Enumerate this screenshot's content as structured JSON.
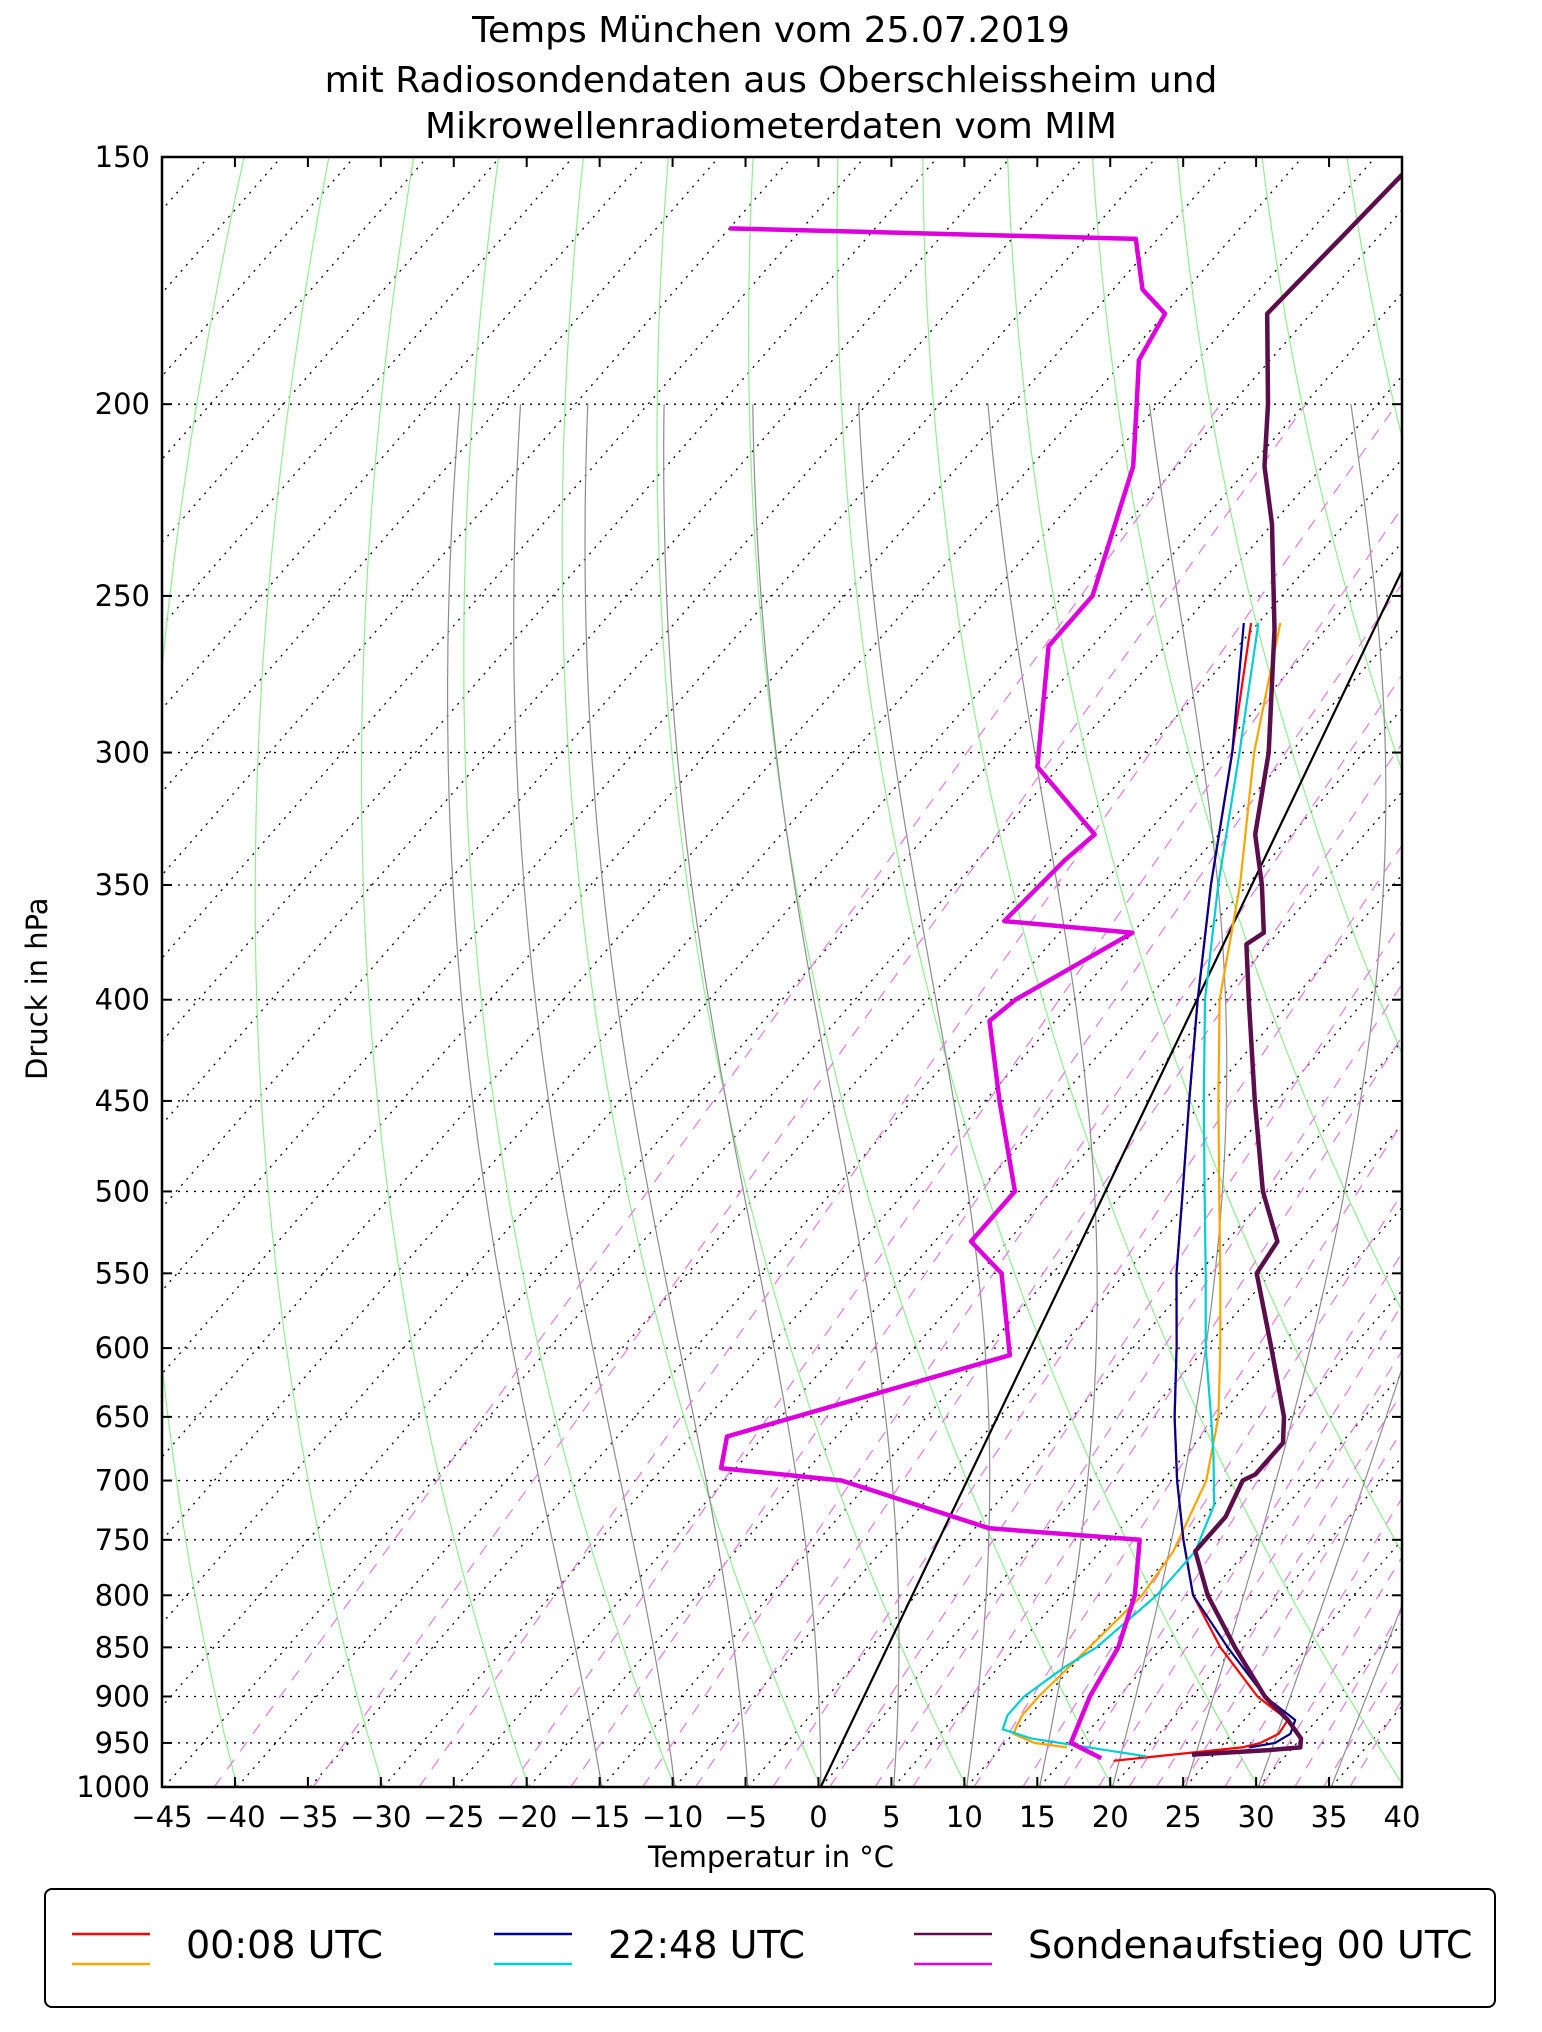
{
  "chart_data": {
    "type": "line",
    "diagram": "skew-T log-p",
    "title": [
      "Temps München vom 25.07.2019",
      "mit Radiosondendaten aus Oberschleissheim und",
      "Mikrowellenradiometerdaten vom MIM"
    ],
    "xlabel": "Temperatur in °C",
    "ylabel": "Druck in hPa",
    "xlim": [
      -45,
      40
    ],
    "ylim": [
      1000,
      150
    ],
    "y_scale": "log",
    "x_ticks": [
      "−45",
      "−40",
      "−35",
      "−30",
      "−25",
      "−20",
      "−15",
      "−10",
      "−5",
      "0",
      "5",
      "10",
      "15",
      "20",
      "25",
      "30",
      "35",
      "40"
    ],
    "y_ticks": [
      "150",
      "200",
      "250",
      "300",
      "350",
      "400",
      "450",
      "500",
      "550",
      "600",
      "650",
      "700",
      "750",
      "800",
      "850",
      "900",
      "950",
      "1000"
    ],
    "legend_position": "bottom",
    "legend": [
      {
        "label": "00:08 UTC",
        "colors": [
          "#ff0000",
          "#ffa500"
        ]
      },
      {
        "label": "22:48 UTC",
        "colors": [
          "#00008b",
          "#00ced1"
        ]
      },
      {
        "label": "Sondenaufstieg 00 UTC",
        "colors": [
          "#5b0f4a",
          "#dd00dd"
        ]
      }
    ],
    "background_lines": {
      "isotherms": "dotted, black",
      "dry_adiabats": "green, thin",
      "moist_adiabats": "grey, thin",
      "mixing_ratio": "magenta, dashed",
      "reference_line": "black, 0 °C at 1000 hPa"
    },
    "series": [
      {
        "name": "00:08 UTC",
        "kind": "temperature",
        "color": "#ff0000",
        "points": [
          [
            1000,
            null
          ],
          [
            970,
            18.5
          ],
          [
            955,
            26.5
          ],
          [
            950,
            27.5
          ],
          [
            940,
            28.2
          ],
          [
            925,
            28.0
          ],
          [
            900,
            24.5
          ],
          [
            850,
            19.0
          ],
          [
            800,
            14.0
          ],
          [
            750,
            10.0
          ],
          [
            700,
            6.0
          ],
          [
            650,
            2.0
          ],
          [
            600,
            -2.0
          ],
          [
            550,
            -6.5
          ],
          [
            500,
            -11.0
          ],
          [
            450,
            -16.0
          ],
          [
            400,
            -21.5
          ],
          [
            350,
            -27.5
          ],
          [
            300,
            -34.0
          ],
          [
            258,
            -40.5
          ]
        ]
      },
      {
        "name": "00:08 UTC",
        "kind": "dewpoint",
        "color": "#ffa500",
        "points": [
          [
            955,
            14.5
          ],
          [
            950,
            12.0
          ],
          [
            940,
            10.0
          ],
          [
            920,
            9.5
          ],
          [
            900,
            9.5
          ],
          [
            850,
            10.0
          ],
          [
            800,
            10.5
          ],
          [
            760,
            10.0
          ],
          [
            700,
            8.0
          ],
          [
            650,
            5.0
          ],
          [
            600,
            1.0
          ],
          [
            550,
            -3.5
          ],
          [
            500,
            -8.5
          ],
          [
            450,
            -14.0
          ],
          [
            400,
            -20.0
          ],
          [
            350,
            -25.5
          ],
          [
            300,
            -32.5
          ],
          [
            258,
            -38.5
          ]
        ]
      },
      {
        "name": "22:48 UTC",
        "kind": "temperature",
        "color": "#00008b",
        "points": [
          [
            955,
            27.0
          ],
          [
            950,
            28.5
          ],
          [
            940,
            29.0
          ],
          [
            925,
            28.5
          ],
          [
            900,
            25.0
          ],
          [
            850,
            19.5
          ],
          [
            800,
            14.0
          ],
          [
            750,
            10.0
          ],
          [
            700,
            6.0
          ],
          [
            650,
            2.0
          ],
          [
            600,
            -2.0
          ],
          [
            550,
            -6.5
          ],
          [
            500,
            -11.0
          ],
          [
            450,
            -16.0
          ],
          [
            400,
            -21.5
          ],
          [
            350,
            -27.5
          ],
          [
            300,
            -34.0
          ],
          [
            258,
            -41.0
          ]
        ]
      },
      {
        "name": "22:48 UTC",
        "kind": "dewpoint",
        "color": "#00ced1",
        "points": [
          [
            965,
            20.5
          ],
          [
            955,
            16.0
          ],
          [
            945,
            11.5
          ],
          [
            935,
            9.0
          ],
          [
            920,
            8.5
          ],
          [
            900,
            8.5
          ],
          [
            870,
            9.5
          ],
          [
            850,
            10.5
          ],
          [
            800,
            11.5
          ],
          [
            760,
            11.5
          ],
          [
            720,
            10.0
          ],
          [
            680,
            7.0
          ],
          [
            650,
            4.5
          ],
          [
            600,
            0.0
          ],
          [
            550,
            -4.5
          ],
          [
            500,
            -9.5
          ],
          [
            450,
            -15.0
          ],
          [
            400,
            -21.0
          ],
          [
            350,
            -27.0
          ],
          [
            300,
            -33.5
          ],
          [
            258,
            -40.0
          ]
        ]
      },
      {
        "name": "Sondenaufstieg 00 UTC",
        "kind": "temperature",
        "color": "#5b0f4a",
        "points": [
          [
            963,
            23.5
          ],
          [
            958,
            28.5
          ],
          [
            955,
            30.5
          ],
          [
            945,
            30.0
          ],
          [
            925,
            28.0
          ],
          [
            900,
            25.0
          ],
          [
            850,
            20.0
          ],
          [
            800,
            15.0
          ],
          [
            760,
            11.5
          ],
          [
            730,
            11.5
          ],
          [
            700,
            10.5
          ],
          [
            695,
            11.0
          ],
          [
            670,
            11.0
          ],
          [
            650,
            9.5
          ],
          [
            600,
            4.5
          ],
          [
            550,
            -1.0
          ],
          [
            530,
            -1.5
          ],
          [
            500,
            -5.5
          ],
          [
            450,
            -11.5
          ],
          [
            400,
            -18.0
          ],
          [
            375,
            -21.5
          ],
          [
            370,
            -21.0
          ],
          [
            350,
            -24.0
          ],
          [
            330,
            -27.5
          ],
          [
            300,
            -31.5
          ],
          [
            260,
            -38.5
          ],
          [
            230,
            -45.0
          ],
          [
            215,
            -49.0
          ],
          [
            200,
            -52.5
          ],
          [
            180,
            -58.0
          ],
          [
            165,
            -57.5
          ],
          [
            150,
            -57.0
          ]
        ]
      },
      {
        "name": "Sondenaufstieg 00 UTC",
        "kind": "dewpoint",
        "color": "#dd00dd",
        "points": [
          [
            967,
            17.5
          ],
          [
            950,
            14.5
          ],
          [
            900,
            13.0
          ],
          [
            850,
            12.0
          ],
          [
            800,
            10.0
          ],
          [
            750,
            7.0
          ],
          [
            740,
            -4.0
          ],
          [
            700,
            -17.0
          ],
          [
            690,
            -26.0
          ],
          [
            665,
            -27.5
          ],
          [
            605,
            -13.0
          ],
          [
            550,
            -18.5
          ],
          [
            530,
            -22.5
          ],
          [
            500,
            -22.5
          ],
          [
            450,
            -29.0
          ],
          [
            410,
            -34.5
          ],
          [
            400,
            -34.0
          ],
          [
            370,
            -30.0
          ],
          [
            365,
            -39.5
          ],
          [
            340,
            -39.0
          ],
          [
            330,
            -38.5
          ],
          [
            305,
            -46.5
          ],
          [
            265,
            -53.0
          ],
          [
            250,
            -53.0
          ],
          [
            215,
            -58.0
          ],
          [
            200,
            -61.5
          ],
          [
            190,
            -64.0
          ],
          [
            180,
            -65.0
          ],
          [
            175,
            -68.0
          ],
          [
            165,
            -71.5
          ],
          [
            163,
            -100.0
          ]
        ]
      }
    ]
  }
}
